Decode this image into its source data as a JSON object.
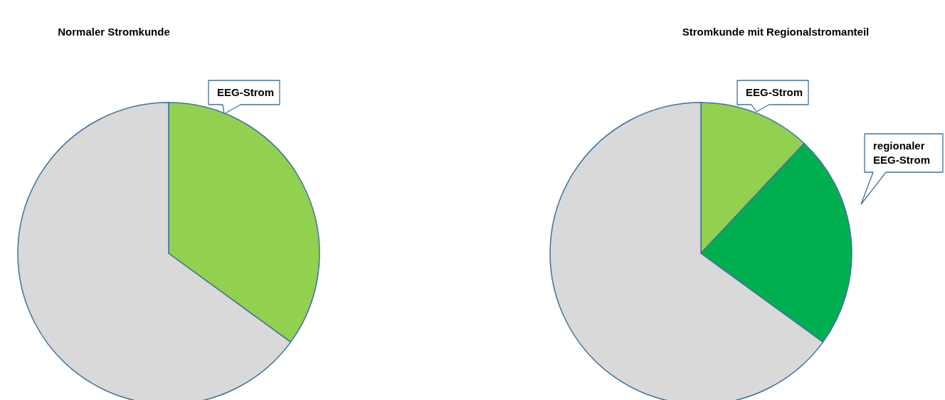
{
  "chart_data": [
    {
      "type": "pie",
      "title": "Normaler Stromkunde",
      "categories": [
        "EEG-Strom",
        null
      ],
      "values": [
        35,
        65
      ],
      "colors": [
        "#92d050",
        "#d9d9d9"
      ]
    },
    {
      "type": "pie",
      "title": "Stromkunde mit Regionalstromanteil",
      "categories": [
        "EEG-Strom",
        "regionaler EEG-Strom",
        null
      ],
      "values": [
        12,
        23,
        65
      ],
      "colors": [
        "#92d050",
        "#00b050",
        "#d9d9d9"
      ]
    }
  ]
}
